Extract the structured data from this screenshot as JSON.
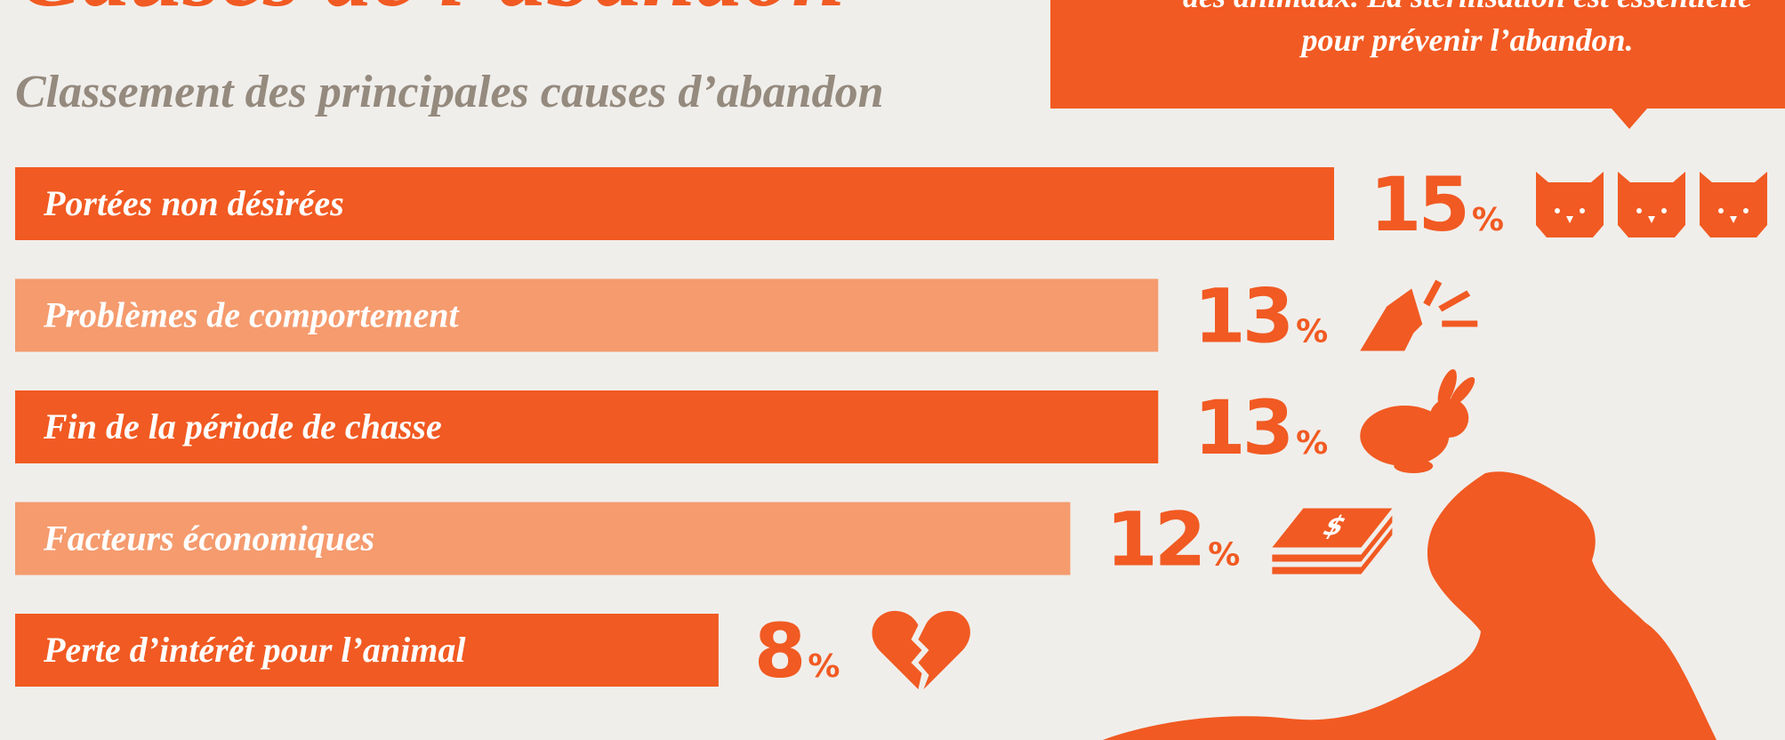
{
  "chart_data": {
    "type": "bar",
    "title": "Causes de l’abandon",
    "subtitle": "Classement des principales causes d’abandon",
    "callout": [
      "des animaux. La stérilisation est essentielle",
      "pour prévenir l’abandon."
    ],
    "categories": [
      "Portées non désirées",
      "Problèmes de comportement",
      "Fin de la période de chasse",
      "Facteurs économiques",
      "Perte d’intérêt pour l’animal"
    ],
    "values": [
      15,
      13,
      13,
      12,
      8
    ],
    "unit": "%",
    "colors": [
      "#f15a22",
      "#f59b6e",
      "#f15a22",
      "#f59b6e",
      "#f15a22"
    ]
  }
}
